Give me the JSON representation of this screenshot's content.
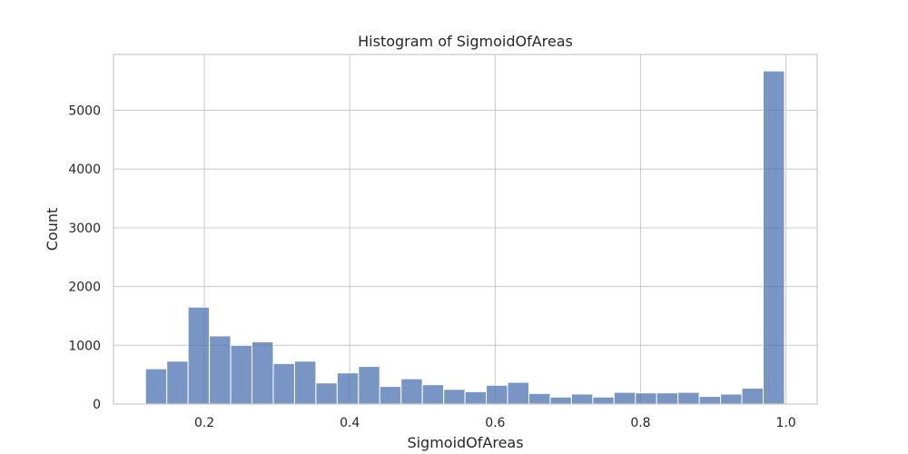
{
  "chart_data": {
    "type": "bar",
    "title": "Histogram of SigmoidOfAreas",
    "xlabel": "SigmoidOfAreas",
    "ylabel": "Count",
    "xlim": [
      0.075,
      1.043
    ],
    "ylim": [
      0,
      5950
    ],
    "x_ticks": [
      0.2,
      0.4,
      0.6,
      0.8,
      1.0
    ],
    "x_tick_labels": [
      "0.2",
      "0.4",
      "0.6",
      "0.8",
      "1.0"
    ],
    "y_ticks": [
      0,
      1000,
      2000,
      3000,
      4000,
      5000
    ],
    "y_tick_labels": [
      "0",
      "1000",
      "2000",
      "3000",
      "4000",
      "5000"
    ],
    "grid": true,
    "bar_color": "#4c72b0",
    "bin_start": 0.119,
    "bin_width": 0.0293,
    "values": [
      600,
      730,
      1650,
      1160,
      1000,
      1060,
      690,
      730,
      360,
      530,
      640,
      300,
      430,
      330,
      250,
      210,
      320,
      370,
      180,
      120,
      170,
      120,
      200,
      190,
      190,
      200,
      130,
      170,
      270,
      5670
    ]
  }
}
